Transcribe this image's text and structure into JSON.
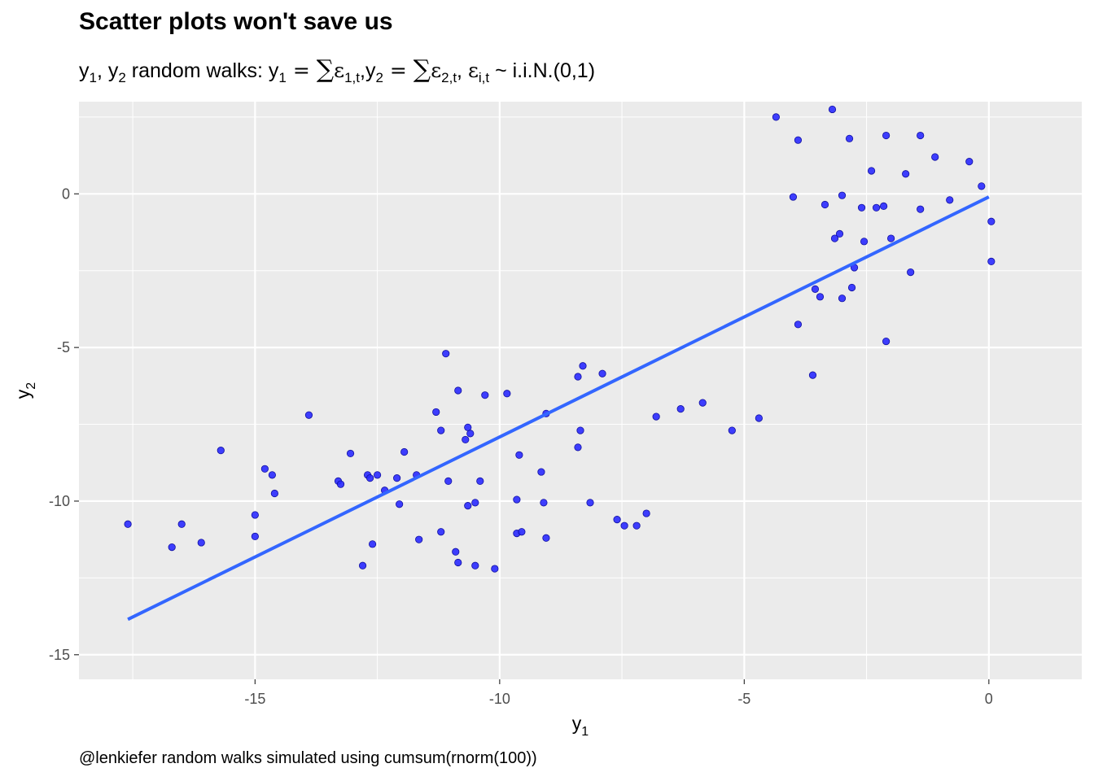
{
  "title": "Scatter plots won't save us",
  "subtitle": {
    "prefix": "y",
    "idx1": "1",
    "sep": ", y",
    "idx2": "2",
    "text1": " random walks: y",
    "eq": " = ",
    "sum": "∑",
    "eps": "ε",
    "sub_e1": "1,t",
    "comma_y": ",y",
    "sub_e2": "2,t",
    "comma": ", ",
    "sub_ei": "i,t",
    "tail": " ~ i.i.N.(0,1)"
  },
  "caption": "@lenkiefer random walks simulated using cumsum(rnorm(100))",
  "colors": {
    "panel": "#ebebeb",
    "grid": "#ffffff",
    "point_fill": "#2a2aff",
    "point_stroke": "#1010a0",
    "fit_line": "#3366ff"
  },
  "chart_data": {
    "type": "scatter",
    "title": "Scatter plots won't save us",
    "xlabel": "y",
    "xlabel_sub": "1",
    "ylabel": "y",
    "ylabel_sub": "2",
    "xlim": [
      -18.6,
      1.9
    ],
    "ylim": [
      -15.8,
      3.0
    ],
    "x_ticks": [
      -15,
      -10,
      -5,
      0
    ],
    "x_tick_labels": [
      "-15",
      "-10",
      "-5",
      "0"
    ],
    "y_ticks": [
      -15,
      -10,
      -5,
      0
    ],
    "y_tick_labels": [
      "-15",
      "-10",
      "-5",
      "0"
    ],
    "x_minor": [
      -17.5,
      -12.5,
      -7.5,
      -2.5
    ],
    "y_minor": [
      -12.5,
      -7.5,
      -2.5,
      2.5
    ],
    "grid": true,
    "fit_line": {
      "method": "linear",
      "x": [
        -17.6,
        0
      ],
      "y": [
        -13.85,
        -0.1
      ]
    },
    "points": [
      [
        -17.6,
        -10.75
      ],
      [
        -16.7,
        -11.5
      ],
      [
        -16.5,
        -10.75
      ],
      [
        -16.1,
        -11.35
      ],
      [
        -15.7,
        -8.35
      ],
      [
        -15.0,
        -10.45
      ],
      [
        -15.0,
        -11.15
      ],
      [
        -14.8,
        -8.95
      ],
      [
        -14.65,
        -9.15
      ],
      [
        -14.6,
        -9.75
      ],
      [
        -13.9,
        -7.2
      ],
      [
        -13.3,
        -9.35
      ],
      [
        -13.25,
        -9.45
      ],
      [
        -13.05,
        -8.45
      ],
      [
        -12.8,
        -12.1
      ],
      [
        -12.7,
        -9.15
      ],
      [
        -12.65,
        -9.25
      ],
      [
        -12.6,
        -11.4
      ],
      [
        -12.5,
        -9.15
      ],
      [
        -12.35,
        -9.65
      ],
      [
        -12.1,
        -9.25
      ],
      [
        -12.05,
        -10.1
      ],
      [
        -11.95,
        -8.4
      ],
      [
        -11.7,
        -9.15
      ],
      [
        -11.65,
        -11.25
      ],
      [
        -11.3,
        -7.1
      ],
      [
        -11.2,
        -7.7
      ],
      [
        -11.2,
        -11.0
      ],
      [
        -11.1,
        -5.2
      ],
      [
        -11.05,
        -9.35
      ],
      [
        -10.9,
        -11.65
      ],
      [
        -10.85,
        -6.4
      ],
      [
        -10.85,
        -12.0
      ],
      [
        -10.7,
        -8.0
      ],
      [
        -10.65,
        -7.6
      ],
      [
        -10.6,
        -7.8
      ],
      [
        -10.65,
        -10.15
      ],
      [
        -10.5,
        -10.05
      ],
      [
        -10.5,
        -12.1
      ],
      [
        -10.4,
        -9.35
      ],
      [
        -10.3,
        -6.55
      ],
      [
        -10.1,
        -12.2
      ],
      [
        -9.85,
        -6.5
      ],
      [
        -9.65,
        -9.95
      ],
      [
        -9.65,
        -11.05
      ],
      [
        -9.6,
        -8.5
      ],
      [
        -9.55,
        -11.0
      ],
      [
        -9.15,
        -9.05
      ],
      [
        -9.1,
        -10.05
      ],
      [
        -9.05,
        -11.2
      ],
      [
        -9.05,
        -7.15
      ],
      [
        -8.4,
        -5.95
      ],
      [
        -8.4,
        -8.25
      ],
      [
        -8.35,
        -7.7
      ],
      [
        -8.3,
        -5.6
      ],
      [
        -8.15,
        -10.05
      ],
      [
        -7.9,
        -5.85
      ],
      [
        -7.6,
        -10.6
      ],
      [
        -7.45,
        -10.8
      ],
      [
        -7.2,
        -10.8
      ],
      [
        -7.0,
        -10.4
      ],
      [
        -6.8,
        -7.25
      ],
      [
        -6.3,
        -7.0
      ],
      [
        -5.85,
        -6.8
      ],
      [
        -5.25,
        -7.7
      ],
      [
        -4.7,
        -7.3
      ],
      [
        -4.35,
        2.5
      ],
      [
        -4.0,
        -0.1
      ],
      [
        -3.9,
        1.75
      ],
      [
        -3.9,
        -4.25
      ],
      [
        -3.6,
        -5.9
      ],
      [
        -3.55,
        -3.1
      ],
      [
        -3.45,
        -3.35
      ],
      [
        -3.35,
        -0.35
      ],
      [
        -3.2,
        2.75
      ],
      [
        -3.15,
        -1.45
      ],
      [
        -3.05,
        -1.3
      ],
      [
        -3.0,
        -0.05
      ],
      [
        -3.0,
        -3.4
      ],
      [
        -2.85,
        1.8
      ],
      [
        -2.8,
        -3.05
      ],
      [
        -2.75,
        -2.4
      ],
      [
        -2.6,
        -0.45
      ],
      [
        -2.55,
        -1.55
      ],
      [
        -2.4,
        0.75
      ],
      [
        -2.3,
        -0.45
      ],
      [
        -2.15,
        -0.4
      ],
      [
        -2.1,
        1.9
      ],
      [
        -2.1,
        -4.8
      ],
      [
        -2.0,
        -1.45
      ],
      [
        -1.7,
        0.65
      ],
      [
        -1.6,
        -2.55
      ],
      [
        -1.4,
        1.9
      ],
      [
        -1.4,
        -0.5
      ],
      [
        -1.1,
        1.2
      ],
      [
        -0.8,
        -0.2
      ],
      [
        -0.4,
        1.05
      ],
      [
        -0.15,
        0.25
      ],
      [
        0.05,
        -0.9
      ],
      [
        0.05,
        -2.2
      ]
    ]
  }
}
